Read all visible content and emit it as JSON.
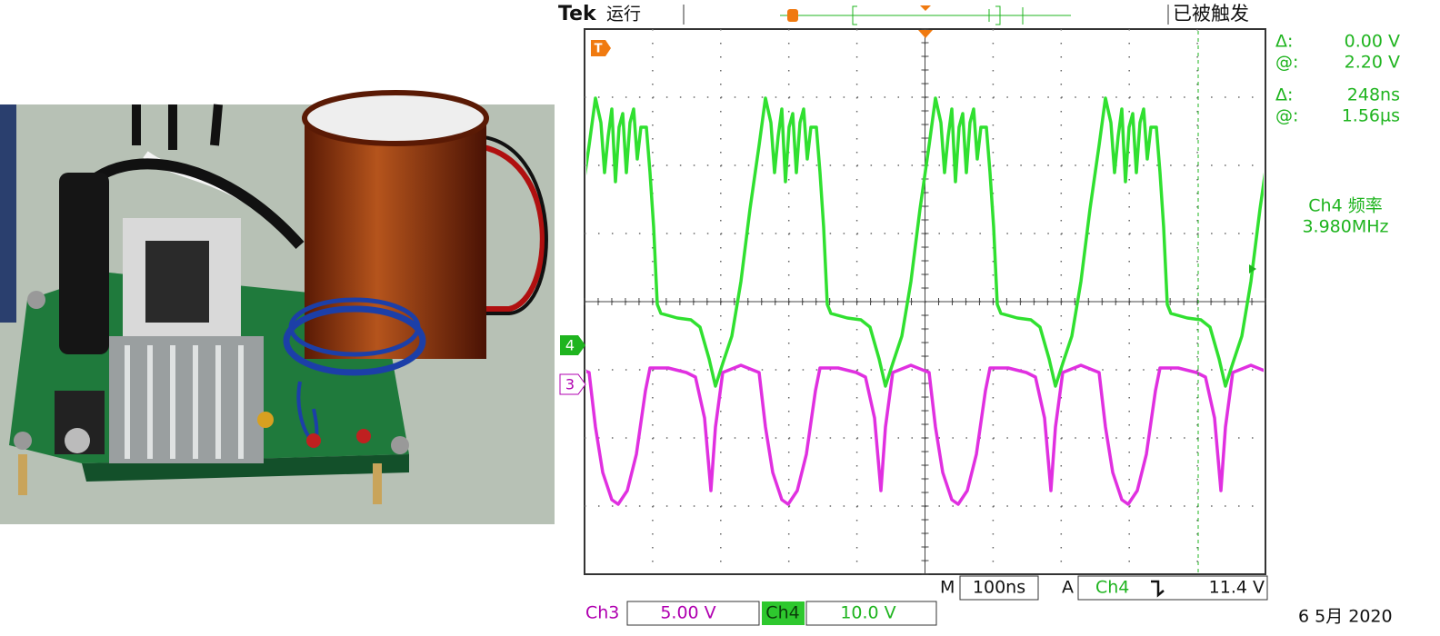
{
  "header": {
    "brand": "Tek",
    "status": "运行",
    "trigger_state": "已被触发"
  },
  "cursors": [
    {
      "delta_label": "Δ:",
      "delta": "0.00 V",
      "at_label": "@:",
      "at": "2.20 V"
    },
    {
      "delta_label": "Δ:",
      "delta": "248ns",
      "at_label": "@:",
      "at": "1.56µs"
    }
  ],
  "measurement": {
    "label": "Ch4 频率",
    "value": "3.980MHz"
  },
  "markers": {
    "trigger": "T",
    "ch4": "4",
    "ch3": "3"
  },
  "timebase": {
    "label": "M",
    "value": "100ns"
  },
  "trigger": {
    "label": "A",
    "source": "Ch4",
    "level": "11.4 V"
  },
  "channels": [
    {
      "name": "Ch3",
      "scale": "5.00 V"
    },
    {
      "name": "Ch4",
      "scale": "10.0 V"
    }
  ],
  "date": "6 5月 2020"
}
